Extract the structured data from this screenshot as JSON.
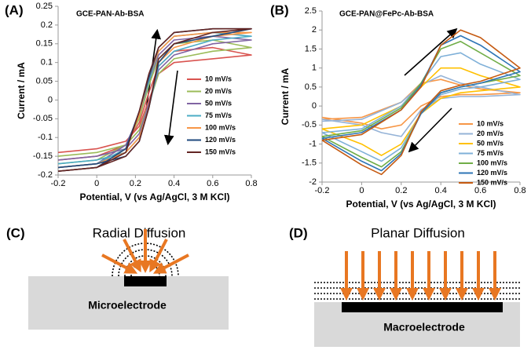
{
  "chart_data": [
    {
      "type": "line",
      "panel_label": "(A)",
      "title": "GCE-PAN-Ab-BSA",
      "x_label": "Potential, V (vs Ag/AgCl, 3 M KCl)",
      "y_label": "Current / mA",
      "xlim": [
        -0.2,
        0.8
      ],
      "xticks": [
        -0.2,
        0,
        0.2,
        0.4,
        0.6,
        0.8
      ],
      "ylim": [
        -0.2,
        0.25
      ],
      "yticks": [
        -0.2,
        -0.15,
        -0.1,
        -0.05,
        0,
        0.05,
        0.1,
        0.15,
        0.2,
        0.25
      ],
      "x": [
        -0.2,
        0,
        0.15,
        0.22,
        0.27,
        0.32,
        0.4,
        0.6,
        0.8,
        0.6,
        0.4,
        0.32,
        0.27,
        0.22,
        0.15,
        0,
        -0.2
      ],
      "series": [
        {
          "name": "10 mV/s",
          "color": "#d9534f",
          "values": [
            -0.14,
            -0.13,
            -0.11,
            -0.07,
            0.0,
            0.07,
            0.1,
            0.11,
            0.12,
            0.14,
            0.13,
            0.09,
            0.02,
            -0.06,
            -0.12,
            -0.15,
            -0.16
          ]
        },
        {
          "name": "20 mV/s",
          "color": "#9bbb59",
          "values": [
            -0.15,
            -0.14,
            -0.12,
            -0.08,
            -0.01,
            0.07,
            0.11,
            0.13,
            0.14,
            0.16,
            0.15,
            0.11,
            0.04,
            -0.05,
            -0.12,
            -0.16,
            -0.17
          ]
        },
        {
          "name": "50 mV/s",
          "color": "#8064a2",
          "values": [
            -0.16,
            -0.15,
            -0.13,
            -0.09,
            -0.01,
            0.08,
            0.12,
            0.15,
            0.16,
            0.17,
            0.16,
            0.12,
            0.05,
            -0.04,
            -0.12,
            -0.17,
            -0.18
          ]
        },
        {
          "name": "75 mV/s",
          "color": "#4bacc6",
          "values": [
            -0.17,
            -0.16,
            -0.14,
            -0.1,
            -0.02,
            0.09,
            0.13,
            0.16,
            0.17,
            0.18,
            0.17,
            0.13,
            0.05,
            -0.04,
            -0.13,
            -0.17,
            -0.18
          ]
        },
        {
          "name": "100 mV/s",
          "color": "#f79646",
          "values": [
            -0.18,
            -0.17,
            -0.14,
            -0.1,
            -0.02,
            0.1,
            0.14,
            0.17,
            0.18,
            0.18,
            0.17,
            0.13,
            0.06,
            -0.04,
            -0.13,
            -0.18,
            -0.19
          ]
        },
        {
          "name": "120 mV/s",
          "color": "#1f497d",
          "values": [
            -0.18,
            -0.17,
            -0.15,
            -0.11,
            -0.02,
            0.1,
            0.15,
            0.17,
            0.19,
            0.19,
            0.18,
            0.14,
            0.06,
            -0.03,
            -0.13,
            -0.18,
            -0.19
          ]
        },
        {
          "name": "150 mV/s",
          "color": "#632523",
          "values": [
            -0.19,
            -0.18,
            -0.15,
            -0.11,
            -0.02,
            0.11,
            0.15,
            0.18,
            0.19,
            0.19,
            0.18,
            0.14,
            0.07,
            -0.03,
            -0.14,
            -0.18,
            -0.19
          ]
        }
      ]
    },
    {
      "type": "line",
      "panel_label": "(B)",
      "title": "GCE-PAN@FePc-Ab-BSA",
      "x_label": "Potential, V (vs Ag/AgCl, 3 M KCl)",
      "y_label": "Current / mA",
      "xlim": [
        -0.2,
        0.8
      ],
      "xticks": [
        -0.2,
        0,
        0.2,
        0.4,
        0.6,
        0.8
      ],
      "ylim": [
        -2,
        2.5
      ],
      "yticks": [
        -2,
        -1.5,
        -1,
        -0.5,
        0,
        0.5,
        1,
        1.5,
        2,
        2.5
      ],
      "x": [
        -0.2,
        0,
        0.2,
        0.3,
        0.4,
        0.5,
        0.6,
        0.8,
        0.6,
        0.5,
        0.4,
        0.3,
        0.2,
        0.1,
        0,
        -0.2
      ],
      "series": [
        {
          "name": "10 mV/s",
          "color": "#f79646",
          "values": [
            -0.35,
            -0.3,
            0.1,
            0.6,
            0.7,
            0.55,
            0.45,
            0.35,
            0.3,
            0.3,
            0.25,
            0,
            -0.5,
            -0.6,
            -0.45,
            -0.3
          ]
        },
        {
          "name": "20 mV/s",
          "color": "#95b3d7",
          "values": [
            -0.4,
            -0.35,
            0.1,
            0.55,
            0.8,
            0.6,
            0.5,
            0.3,
            0.25,
            0.25,
            0.2,
            -0.1,
            -0.8,
            -0.7,
            -0.5,
            -0.35
          ]
        },
        {
          "name": "50 mV/s",
          "color": "#ffc000",
          "values": [
            -0.6,
            -0.5,
            0,
            0.5,
            1.0,
            1.0,
            0.8,
            0.5,
            0.4,
            0.35,
            0.2,
            -0.2,
            -1.0,
            -1.3,
            -1.0,
            -0.6
          ]
        },
        {
          "name": "75 mV/s",
          "color": "#7fb0d8",
          "values": [
            -0.7,
            -0.6,
            0,
            0.6,
            1.3,
            1.4,
            1.1,
            0.7,
            0.5,
            0.45,
            0.3,
            -0.2,
            -1.1,
            -1.45,
            -1.2,
            -0.7
          ]
        },
        {
          "name": "100 mV/s",
          "color": "#70ad47",
          "values": [
            -0.8,
            -0.65,
            -0.05,
            0.6,
            1.5,
            1.7,
            1.4,
            0.8,
            0.6,
            0.5,
            0.35,
            -0.2,
            -1.2,
            -1.6,
            -1.35,
            -0.8
          ]
        },
        {
          "name": "120 mV/s",
          "color": "#2e75b6",
          "values": [
            -0.85,
            -0.7,
            -0.1,
            0.55,
            1.6,
            1.85,
            1.6,
            0.9,
            0.6,
            0.5,
            0.35,
            -0.2,
            -1.25,
            -1.7,
            -1.45,
            -0.85
          ]
        },
        {
          "name": "150 mV/s",
          "color": "#c55a11",
          "values": [
            -0.9,
            -0.75,
            -0.1,
            0.5,
            1.6,
            2.0,
            1.8,
            1.0,
            0.65,
            0.55,
            0.4,
            -0.15,
            -1.3,
            -1.8,
            -1.55,
            -0.9
          ]
        }
      ]
    }
  ],
  "diagrams": [
    {
      "panel_label": "(C)",
      "title": "Radial Diffusion",
      "electrode_label": "Microelectrode"
    },
    {
      "panel_label": "(D)",
      "title": "Planar Diffusion",
      "electrode_label": "Macroelectrode"
    }
  ]
}
